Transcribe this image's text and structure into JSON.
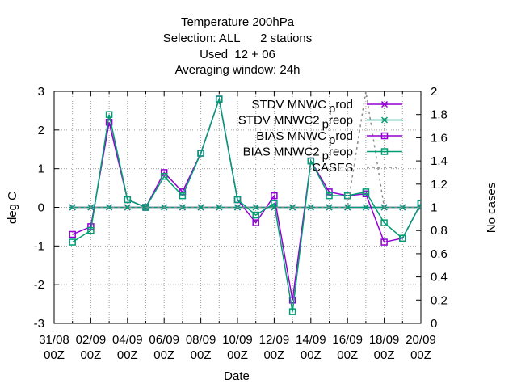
{
  "chart_data": {
    "type": "line",
    "title_lines": [
      "Temperature 200hPa",
      "Selection: ALL      2 stations",
      "Used  12 + 06",
      "Averaging window: 24h"
    ],
    "xlabel": "Date",
    "ylabel": "deg C",
    "y2label": "No cases",
    "ylim": [
      -3,
      3
    ],
    "y2lim": [
      0,
      2
    ],
    "yticks": [
      "-3",
      "-2",
      "-1",
      "0",
      "1",
      "2",
      "3"
    ],
    "y2ticks": [
      "0",
      "0.2",
      "0.4",
      "0.6",
      "0.8",
      "1",
      "1.2",
      "1.4",
      "1.6",
      "1.8",
      "2"
    ],
    "xticks": [
      {
        "line1": "31/08",
        "line2": "00Z"
      },
      {
        "line1": "02/09",
        "line2": "00Z"
      },
      {
        "line1": "04/09",
        "line2": "00Z"
      },
      {
        "line1": "06/09",
        "line2": "00Z"
      },
      {
        "line1": "08/09",
        "line2": "00Z"
      },
      {
        "line1": "10/09",
        "line2": "00Z"
      },
      {
        "line1": "12/09",
        "line2": "00Z"
      },
      {
        "line1": "14/09",
        "line2": "00Z"
      },
      {
        "line1": "16/09",
        "line2": "00Z"
      },
      {
        "line1": "18/09",
        "line2": "00Z"
      },
      {
        "line1": "20/09",
        "line2": "00Z"
      }
    ],
    "x": [
      1,
      2,
      3,
      4,
      5,
      6,
      7,
      8,
      9,
      10,
      11,
      12,
      13,
      14,
      15,
      16,
      17,
      18,
      19,
      20
    ],
    "grid": true,
    "legend_position": "top-right",
    "series": [
      {
        "name": "STDV MNWC_prod",
        "legend_main": "STDV MNWC",
        "legend_sub": "p",
        "legend_tail": "rod",
        "color": "#9400d3",
        "marker": "x",
        "axis": "y",
        "values": [
          0,
          0,
          0,
          0,
          0,
          0,
          0,
          0,
          0,
          0,
          0,
          0,
          0,
          0,
          0,
          0,
          0,
          0,
          0,
          0
        ]
      },
      {
        "name": "STDV MNWC2_preop",
        "legend_main": "STDV MNWC2",
        "legend_sub": "p",
        "legend_tail": "reop",
        "color": "#009e73",
        "marker": "x",
        "axis": "y",
        "values": [
          0,
          0,
          0,
          0,
          0,
          0,
          0,
          0,
          0,
          0,
          0,
          0,
          0,
          0,
          0,
          0,
          0,
          0,
          0,
          0
        ]
      },
      {
        "name": "BIAS MNWC_prod",
        "legend_main": "BIAS MNWC",
        "legend_sub": "p",
        "legend_tail": "rod",
        "color": "#9400d3",
        "marker": "square",
        "axis": "y",
        "values": [
          -0.7,
          -0.5,
          2.2,
          0.2,
          0.0,
          0.9,
          0.4,
          1.4,
          2.8,
          0.2,
          -0.4,
          0.3,
          -2.4,
          1.2,
          0.4,
          0.3,
          0.35,
          -0.9,
          -0.8,
          0.1
        ]
      },
      {
        "name": "BIAS MNWC2_preop",
        "legend_main": "BIAS MNWC2",
        "legend_sub": "p",
        "legend_tail": "reop",
        "color": "#009e73",
        "marker": "square",
        "axis": "y",
        "values": [
          -0.9,
          -0.6,
          2.4,
          0.2,
          0.0,
          0.8,
          0.3,
          1.4,
          2.8,
          0.2,
          -0.2,
          0.1,
          -2.7,
          1.2,
          0.3,
          0.3,
          0.4,
          -0.4,
          -0.8,
          0.1
        ]
      },
      {
        "name": "CASES",
        "legend_main": "CASES",
        "legend_sub": "",
        "legend_tail": "",
        "color": "#8c8c8c",
        "marker": "none",
        "dashed": true,
        "axis": "y2",
        "values": [
          1,
          1,
          1,
          1,
          1,
          1,
          1,
          1,
          1,
          1,
          1,
          1,
          1,
          1,
          1,
          1,
          2,
          1,
          1,
          1
        ]
      }
    ]
  }
}
